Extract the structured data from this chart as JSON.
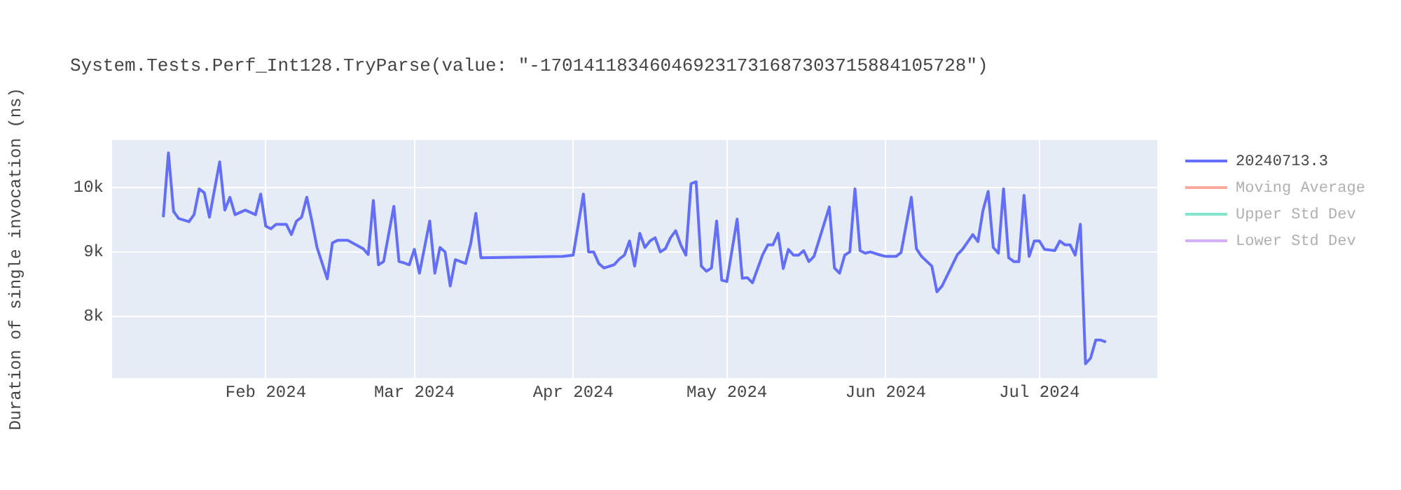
{
  "chart_data": {
    "type": "line",
    "title": "System.Tests.Perf_Int128.TryParse(value: \"-170141183460469231731687303715884105728\")",
    "ylabel": "Duration of single invocation (ns)",
    "x": [
      "2024-01-12",
      "2024-01-13",
      "2024-01-14",
      "2024-01-15",
      "2024-01-17",
      "2024-01-18",
      "2024-01-19",
      "2024-01-20",
      "2024-01-21",
      "2024-01-23",
      "2024-01-24",
      "2024-01-25",
      "2024-01-26",
      "2024-01-28",
      "2024-01-30",
      "2024-01-31",
      "2024-02-01",
      "2024-02-02",
      "2024-02-03",
      "2024-02-05",
      "2024-02-06",
      "2024-02-07",
      "2024-02-08",
      "2024-02-09",
      "2024-02-10",
      "2024-02-11",
      "2024-02-13",
      "2024-02-14",
      "2024-02-15",
      "2024-02-17",
      "2024-02-20",
      "2024-02-21",
      "2024-02-22",
      "2024-02-23",
      "2024-02-24",
      "2024-02-26",
      "2024-02-27",
      "2024-02-28",
      "2024-02-29",
      "2024-03-01",
      "2024-03-02",
      "2024-03-04",
      "2024-03-05",
      "2024-03-06",
      "2024-03-07",
      "2024-03-08",
      "2024-03-09",
      "2024-03-11",
      "2024-03-12",
      "2024-03-13",
      "2024-03-14",
      "2024-03-30",
      "2024-04-01",
      "2024-04-03",
      "2024-04-04",
      "2024-04-05",
      "2024-04-06",
      "2024-04-07",
      "2024-04-09",
      "2024-04-10",
      "2024-04-11",
      "2024-04-12",
      "2024-04-13",
      "2024-04-14",
      "2024-04-15",
      "2024-04-16",
      "2024-04-17",
      "2024-04-18",
      "2024-04-19",
      "2024-04-20",
      "2024-04-21",
      "2024-04-22",
      "2024-04-23",
      "2024-04-24",
      "2024-04-25",
      "2024-04-26",
      "2024-04-27",
      "2024-04-28",
      "2024-04-29",
      "2024-04-30",
      "2024-05-01",
      "2024-05-03",
      "2024-05-04",
      "2024-05-05",
      "2024-05-06",
      "2024-05-07",
      "2024-05-08",
      "2024-05-09",
      "2024-05-10",
      "2024-05-11",
      "2024-05-12",
      "2024-05-13",
      "2024-05-14",
      "2024-05-15",
      "2024-05-16",
      "2024-05-17",
      "2024-05-18",
      "2024-05-21",
      "2024-05-22",
      "2024-05-23",
      "2024-05-24",
      "2024-05-25",
      "2024-05-26",
      "2024-05-27",
      "2024-05-28",
      "2024-05-29",
      "2024-05-31",
      "2024-06-01",
      "2024-06-03",
      "2024-06-04",
      "2024-06-06",
      "2024-06-07",
      "2024-06-08",
      "2024-06-10",
      "2024-06-11",
      "2024-06-12",
      "2024-06-15",
      "2024-06-16",
      "2024-06-18",
      "2024-06-19",
      "2024-06-20",
      "2024-06-21",
      "2024-06-22",
      "2024-06-23",
      "2024-06-24",
      "2024-06-25",
      "2024-06-26",
      "2024-06-27",
      "2024-06-28",
      "2024-06-29",
      "2024-06-30",
      "2024-07-01",
      "2024-07-02",
      "2024-07-04",
      "2024-07-05",
      "2024-07-06",
      "2024-07-07",
      "2024-07-08",
      "2024-07-09",
      "2024-07-10",
      "2024-07-11",
      "2024-07-12",
      "2024-07-13",
      "2024-07-14"
    ],
    "series": [
      {
        "name": "20240713.3",
        "color": "#636efa",
        "values": [
          9540,
          10540,
          9630,
          9520,
          9470,
          9580,
          9980,
          9920,
          9540,
          10400,
          9650,
          9850,
          9580,
          9650,
          9580,
          9900,
          9400,
          9360,
          9430,
          9430,
          9270,
          9480,
          9540,
          9850,
          9480,
          9070,
          8580,
          9140,
          9180,
          9180,
          9050,
          8960,
          9800,
          8800,
          8850,
          9710,
          8850,
          8830,
          8800,
          9040,
          8670,
          9480,
          8670,
          9070,
          9000,
          8470,
          8880,
          8820,
          9130,
          9600,
          8910,
          8930,
          8950,
          9900,
          9000,
          9000,
          8820,
          8750,
          8800,
          8890,
          8950,
          9170,
          8780,
          9290,
          9070,
          9170,
          9220,
          9000,
          9050,
          9220,
          9330,
          9110,
          8950,
          10060,
          10090,
          8780,
          8700,
          8750,
          9480,
          8560,
          8540,
          9510,
          8590,
          8600,
          8520,
          8740,
          8960,
          9110,
          9110,
          9290,
          8740,
          9040,
          8950,
          8950,
          9020,
          8850,
          8930,
          9700,
          8750,
          8670,
          8950,
          9000,
          9980,
          9020,
          8980,
          9000,
          8950,
          8930,
          8930,
          8990,
          9850,
          9050,
          8930,
          8780,
          8380,
          8470,
          8960,
          9040,
          9270,
          9160,
          9650,
          9940,
          9070,
          8980,
          9980,
          8910,
          8850,
          8850,
          9880,
          8930,
          9170,
          9170,
          9040,
          9020,
          9170,
          9110,
          9110,
          8950,
          9430,
          7260,
          7350,
          7630,
          7630,
          7600
        ]
      },
      {
        "name": "Moving Average",
        "color": "#f7aa9d",
        "values": [
          null,
          null,
          null,
          null,
          null,
          null,
          null,
          null,
          null,
          null,
          null,
          null,
          null,
          null,
          null,
          null,
          null,
          null,
          null,
          null,
          null,
          null,
          null,
          null,
          null,
          null,
          null,
          null,
          null,
          null,
          null,
          null,
          null,
          null,
          null,
          null,
          null,
          null,
          null,
          null,
          null,
          null,
          null,
          null,
          null,
          null,
          null,
          null,
          null,
          null,
          null,
          null,
          null,
          null,
          null,
          null,
          null,
          null,
          null,
          null,
          null,
          null,
          null,
          null,
          null,
          null,
          null,
          null,
          null,
          null,
          null,
          null,
          null,
          null,
          null,
          null,
          null,
          null,
          null,
          null,
          null,
          null,
          null,
          null,
          null,
          null,
          null,
          null,
          null,
          null,
          null,
          null,
          null,
          null,
          null,
          null,
          null,
          null,
          null,
          null,
          null,
          null,
          null,
          null,
          null,
          null,
          null,
          null,
          null,
          null,
          null,
          null,
          null,
          null,
          null,
          null,
          null,
          null,
          null,
          null,
          null,
          null,
          null,
          null,
          null,
          null,
          null,
          null,
          null,
          null,
          null,
          null,
          null,
          null,
          null,
          null,
          null,
          null,
          null,
          null,
          null,
          null,
          null,
          null
        ]
      },
      {
        "name": "Upper Std Dev",
        "color": "#80e5cb",
        "values": [
          null,
          null,
          null,
          null,
          null,
          null,
          null,
          null,
          null,
          null,
          null,
          null,
          null,
          null,
          null,
          null,
          null,
          null,
          null,
          null,
          null,
          null,
          null,
          null,
          null,
          null,
          null,
          null,
          null,
          null,
          null,
          null,
          null,
          null,
          null,
          null,
          null,
          null,
          null,
          null,
          null,
          null,
          null,
          null,
          null,
          null,
          null,
          null,
          null,
          null,
          null,
          null,
          null,
          null,
          null,
          null,
          null,
          null,
          null,
          null,
          null,
          null,
          null,
          null,
          null,
          null,
          null,
          null,
          null,
          null,
          null,
          null,
          null,
          null,
          null,
          null,
          null,
          null,
          null,
          null,
          null,
          null,
          null,
          null,
          null,
          null,
          null,
          null,
          null,
          null,
          null,
          null,
          null,
          null,
          null,
          null,
          null,
          null,
          null,
          null,
          null,
          null,
          null,
          null,
          null,
          null,
          null,
          null,
          null,
          null,
          null,
          null,
          null,
          null,
          null,
          null,
          null,
          null,
          null,
          null,
          null,
          null,
          null,
          null,
          null,
          null,
          null,
          null,
          null,
          null,
          null,
          null,
          null,
          null,
          null,
          null,
          null,
          null,
          null,
          null,
          null,
          null,
          null,
          null
        ]
      },
      {
        "name": "Lower Std Dev",
        "color": "#d5b1fd",
        "values": [
          null,
          null,
          null,
          null,
          null,
          null,
          null,
          null,
          null,
          null,
          null,
          null,
          null,
          null,
          null,
          null,
          null,
          null,
          null,
          null,
          null,
          null,
          null,
          null,
          null,
          null,
          null,
          null,
          null,
          null,
          null,
          null,
          null,
          null,
          null,
          null,
          null,
          null,
          null,
          null,
          null,
          null,
          null,
          null,
          null,
          null,
          null,
          null,
          null,
          null,
          null,
          null,
          null,
          null,
          null,
          null,
          null,
          null,
          null,
          null,
          null,
          null,
          null,
          null,
          null,
          null,
          null,
          null,
          null,
          null,
          null,
          null,
          null,
          null,
          null,
          null,
          null,
          null,
          null,
          null,
          null,
          null,
          null,
          null,
          null,
          null,
          null,
          null,
          null,
          null,
          null,
          null,
          null,
          null,
          null,
          null,
          null,
          null,
          null,
          null,
          null,
          null,
          null,
          null,
          null,
          null,
          null,
          null,
          null,
          null,
          null,
          null,
          null,
          null,
          null,
          null,
          null,
          null,
          null,
          null,
          null,
          null,
          null,
          null,
          null,
          null,
          null,
          null,
          null,
          null,
          null,
          null,
          null,
          null,
          null,
          null,
          null,
          null,
          null,
          null,
          null,
          null,
          null,
          null
        ]
      }
    ],
    "xlim": [
      "2024-01-02",
      "2024-07-24"
    ],
    "xticks": [
      {
        "value": "2024-02-01",
        "label": "Feb 2024"
      },
      {
        "value": "2024-03-01",
        "label": "Mar 2024"
      },
      {
        "value": "2024-04-01",
        "label": "Apr 2024"
      },
      {
        "value": "2024-05-01",
        "label": "May 2024"
      },
      {
        "value": "2024-06-01",
        "label": "Jun 2024"
      },
      {
        "value": "2024-07-01",
        "label": "Jul 2024"
      }
    ],
    "ylim": [
      7040,
      10740
    ],
    "yticks": [
      {
        "value": 8000,
        "label": "8k"
      },
      {
        "value": 9000,
        "label": "9k"
      },
      {
        "value": 10000,
        "label": "10k"
      }
    ],
    "grid": true,
    "legend": "top right",
    "marker": "none",
    "line_style": "solid"
  }
}
